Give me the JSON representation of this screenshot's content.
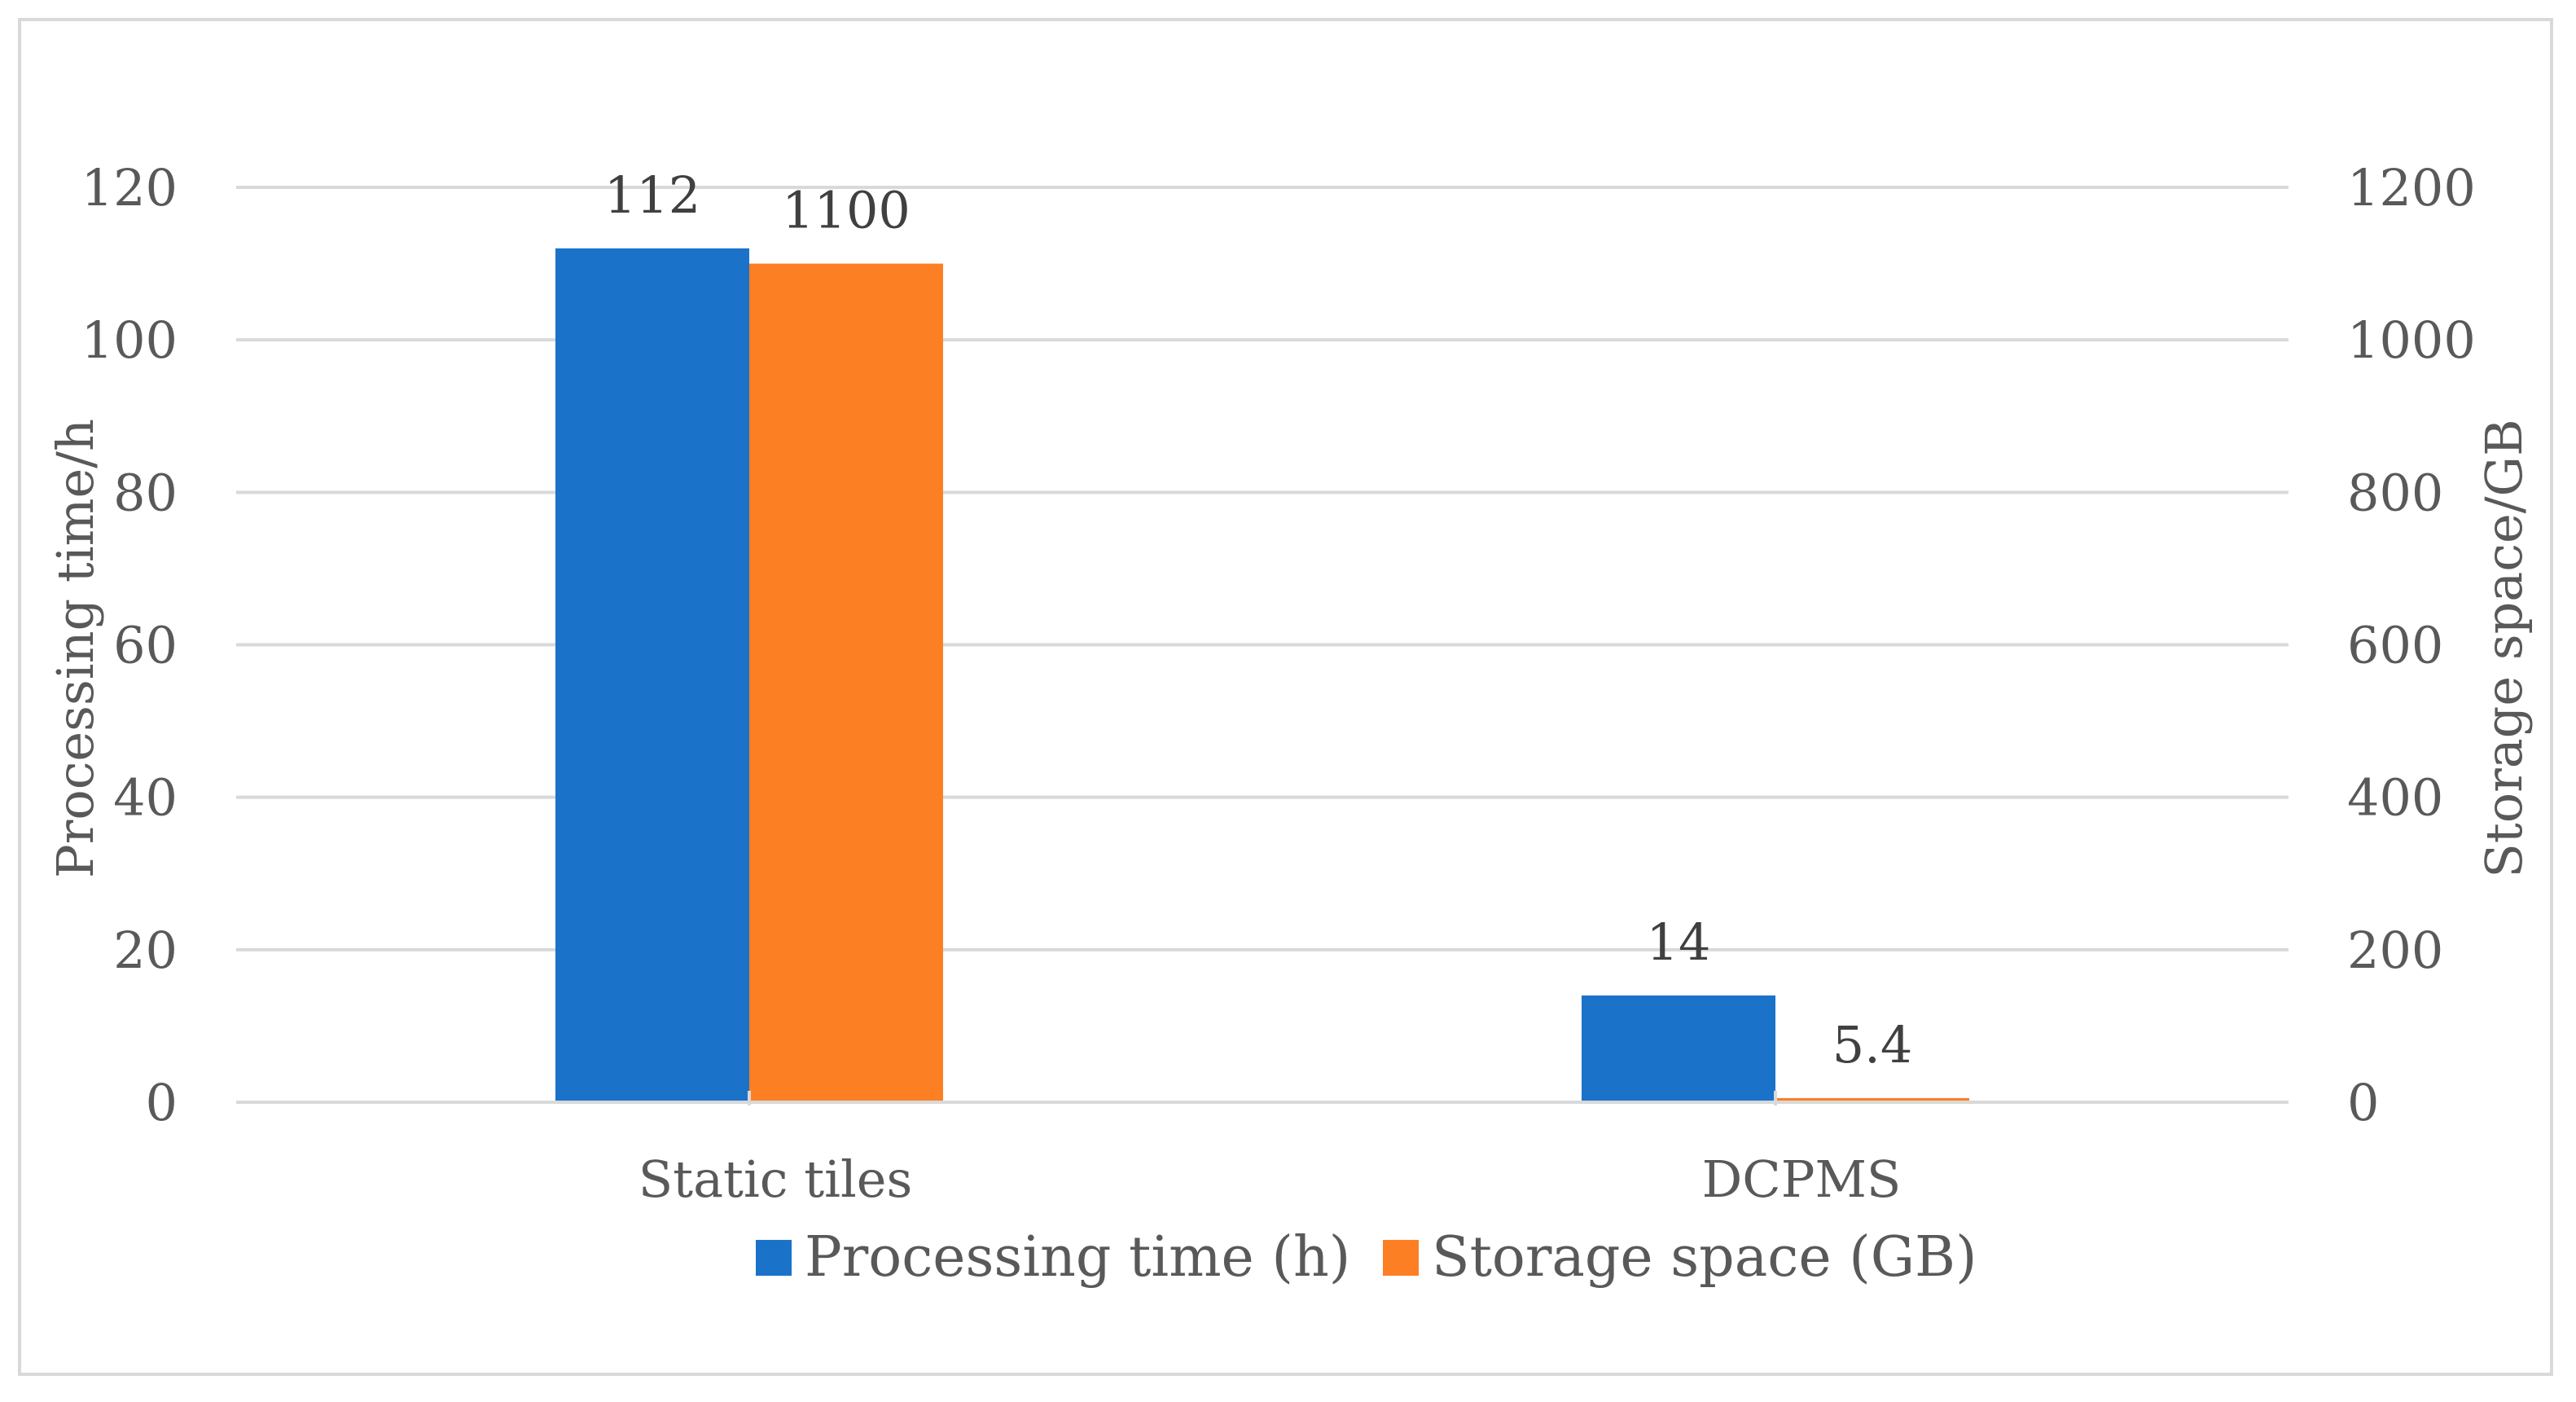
{
  "chart_data": {
    "type": "bar",
    "categories": [
      "Static tiles",
      "DCPMS"
    ],
    "series": [
      {
        "name": "Processing time (h)",
        "axis": "left",
        "color": "#1a73c9",
        "values": [
          112,
          14
        ],
        "labels": [
          "112",
          "14"
        ]
      },
      {
        "name": "Storage space (GB)",
        "axis": "right",
        "color": "#fd7f23",
        "values": [
          1100,
          5.4
        ],
        "labels": [
          "1100",
          "5.4"
        ]
      }
    ],
    "ylabel": "Processing time/h",
    "y2label": "Storage space/GB",
    "ylim": [
      0,
      120
    ],
    "y2lim": [
      0,
      1200
    ],
    "yticks": [
      "0",
      "20",
      "40",
      "60",
      "80",
      "100",
      "120"
    ],
    "y2ticks": [
      "0",
      "200",
      "400",
      "600",
      "800",
      "1000",
      "1200"
    ],
    "grid": true,
    "legend_position": "bottom",
    "gridline_color": "#d9d9d9",
    "text_color": "#595959"
  }
}
